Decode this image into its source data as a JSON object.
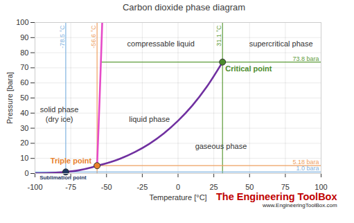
{
  "chart_data": {
    "type": "line",
    "title": "Carbon dioxide phase diagram",
    "x_label": "Temperature [°C]",
    "y_label": "Pressure [bara]",
    "xlim": [
      -100,
      100
    ],
    "xticks": [
      -100,
      -75,
      -50,
      -25,
      0,
      25,
      50,
      75,
      100
    ],
    "ylim": [
      0,
      100
    ],
    "yticks": [
      0,
      10,
      20,
      30,
      40,
      50,
      60,
      70,
      80,
      90,
      100
    ],
    "grid": true,
    "series": [
      {
        "color": "#7030a0",
        "x": [
          -100,
          -90,
          -80,
          -78.5,
          -70,
          -60,
          -56.6
        ],
        "values": [
          0.14,
          0.37,
          0.89,
          1.0,
          2.0,
          4.1,
          5.18
        ]
      },
      {
        "color": "#7030a0",
        "x": [
          -56.6,
          -50,
          -40,
          -30,
          -20,
          -10,
          0,
          10,
          20,
          31.1
        ],
        "values": [
          5.18,
          6.8,
          10.0,
          14.3,
          19.7,
          26.5,
          34.9,
          45.0,
          57.3,
          73.8
        ]
      },
      {
        "color": "#e64bc8",
        "x": [
          -56.6,
          -54.8,
          -53
        ],
        "values": [
          5.18,
          50,
          100
        ]
      }
    ],
    "reference_lines": [
      {
        "axis": "x",
        "value": -78.5,
        "label": "-78.5 °C",
        "color": "#7fb2e0"
      },
      {
        "axis": "x",
        "value": -56.6,
        "label": "-56.6 °C",
        "color": "#eea060"
      },
      {
        "axis": "x",
        "value": 31.1,
        "label": "31.1 °C",
        "color": "#5e9c3a"
      },
      {
        "axis": "y",
        "value": 1.0,
        "label": "1.0 bara",
        "color": "#7fb2e0"
      },
      {
        "axis": "y",
        "value": 5.18,
        "from": -56.6,
        "label": "5.18 bara",
        "color": "#eea060"
      },
      {
        "axis": "y",
        "value": 73.8,
        "from": -53.7,
        "label": "73.8 bara",
        "color": "#5e9c3a"
      }
    ],
    "points": [
      {
        "label": "Sublimation point",
        "x": -78.5,
        "y": 1.0,
        "color": "#1f3864"
      },
      {
        "label": "Triple point",
        "x": -56.6,
        "y": 5.18,
        "color": "#e8812c"
      },
      {
        "label": "Critical point",
        "x": 31.1,
        "y": 73.8,
        "color": "#4c8c2c"
      }
    ],
    "annotations": [
      {
        "text": "solid phase",
        "x": -83,
        "y": 42
      },
      {
        "text": "(dry ice)",
        "x": -83,
        "y": 36
      },
      {
        "text": "liquid phase",
        "x": -20,
        "y": 36
      },
      {
        "text": "compressable liquid",
        "x": -12,
        "y": 86
      },
      {
        "text": "supercritical phase",
        "x": 72,
        "y": 86
      },
      {
        "text": "gaseous phase",
        "x": 30,
        "y": 18
      }
    ],
    "footer": [
      "The Engineering ToolBox",
      "www.EngineeringToolBox.com"
    ]
  }
}
